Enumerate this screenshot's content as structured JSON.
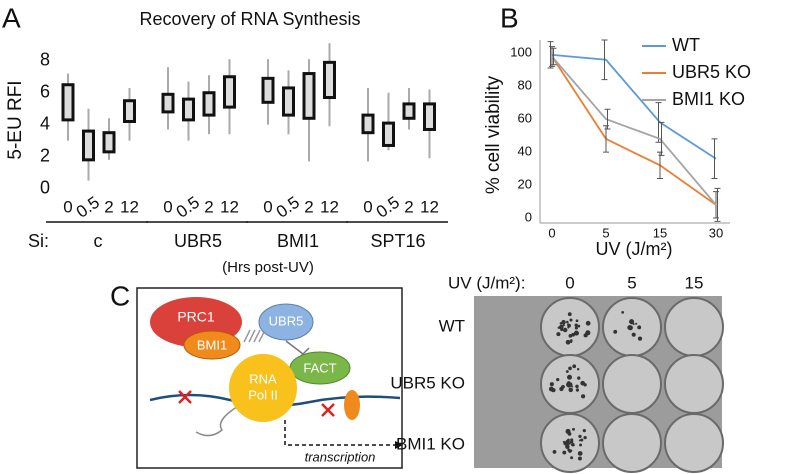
{
  "chart_data": [
    {
      "type": "box",
      "panel": "A",
      "title": "Recovery of RNA Synthesis",
      "y_label": "5-EU RFI",
      "ylim": [
        -0.4,
        9.8
      ],
      "yticks": [
        0,
        2,
        4,
        6,
        8
      ],
      "group_prefix": "Si:",
      "x_label": "(Hrs post-UV)",
      "box_color": "#dddddd",
      "groups": [
        {
          "name": "c",
          "categories": [
            "0",
            "0.5",
            "2",
            "12"
          ],
          "low": [
            3.0,
            0.5,
            1.8,
            3.0
          ],
          "q1": [
            4.3,
            1.8,
            2.3,
            4.2
          ],
          "q3": [
            6.5,
            3.6,
            3.5,
            5.5
          ],
          "high": [
            7.2,
            5.0,
            4.4,
            6.3
          ]
        },
        {
          "name": "UBR5",
          "categories": [
            "0",
            "0.5",
            "2",
            "12"
          ],
          "low": [
            3.7,
            3.0,
            3.4,
            3.4
          ],
          "q1": [
            4.8,
            4.3,
            4.6,
            5.1
          ],
          "q3": [
            5.9,
            5.6,
            6.0,
            7.0
          ],
          "high": [
            7.6,
            6.7,
            7.1,
            8.1
          ]
        },
        {
          "name": "BMI1",
          "categories": [
            "0",
            "0.5",
            "2",
            "12"
          ],
          "low": [
            4.0,
            3.4,
            1.7,
            3.9
          ],
          "q1": [
            5.4,
            4.6,
            4.4,
            5.7
          ],
          "q3": [
            6.9,
            6.3,
            7.2,
            7.9
          ],
          "high": [
            8.1,
            7.4,
            8.1,
            9.1
          ]
        },
        {
          "name": "SPT16",
          "categories": [
            "0",
            "0.5",
            "2",
            "12"
          ],
          "low": [
            1.7,
            2.4,
            3.7,
            1.9
          ],
          "q1": [
            3.5,
            2.7,
            4.4,
            3.7
          ],
          "q3": [
            4.6,
            4.1,
            5.3,
            5.3
          ],
          "high": [
            6.3,
            6.0,
            6.3,
            6.2
          ]
        }
      ]
    },
    {
      "type": "line",
      "panel": "B",
      "y_label": "% cell viability",
      "x_label": "UV (J/m²)",
      "categories": [
        "0",
        "5",
        "15",
        "30"
      ],
      "ylim": [
        -3,
        108
      ],
      "yticks": [
        0,
        20,
        40,
        60,
        80,
        100
      ],
      "legend": "top-right",
      "series": [
        {
          "name": "WT",
          "color": "#5b9bd5",
          "values": [
            99,
            96,
            58,
            36
          ],
          "errors": [
            8,
            12,
            12,
            12
          ]
        },
        {
          "name": "UBR5 KO",
          "color": "#ed7d31",
          "values": [
            98,
            48,
            32,
            8
          ],
          "errors": [
            6,
            8,
            8,
            8
          ]
        },
        {
          "name": "BMI1 KO",
          "color": "#a5a5a5",
          "values": [
            98,
            60,
            48,
            8
          ],
          "errors": [
            5,
            6,
            10,
            10
          ]
        }
      ]
    }
  ],
  "diagram": {
    "panel": "C",
    "labels": [
      "PRC1",
      "BMI1",
      "UBR5",
      "FACT",
      "RNA",
      "Pol II",
      "transcription"
    ]
  },
  "plates": {
    "header": "UV (J/m²):",
    "columns": [
      "0",
      "5",
      "15"
    ],
    "rows": [
      "WT",
      "UBR5 KO",
      "BMI1 KO"
    ]
  }
}
